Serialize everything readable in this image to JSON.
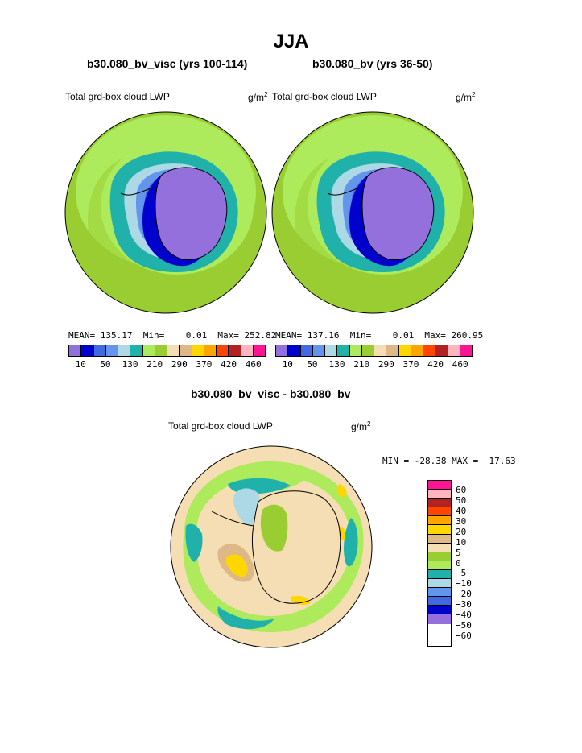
{
  "title": "JJA",
  "colors": {
    "lwp_levels": [
      "#9370DB",
      "#0000CD",
      "#4169E1",
      "#6495ED",
      "#ADD8E6",
      "#20B2AA",
      "#ADEA5C",
      "#9ACD32",
      "#F5DEB3",
      "#DEB887",
      "#FFD700",
      "#FFA500",
      "#FF4500",
      "#B22222",
      "#FFB6C1",
      "#FF1493"
    ],
    "diff_levels": [
      "#FF1493",
      "#FFB6C1",
      "#B22222",
      "#FF4500",
      "#FFA500",
      "#FFD700",
      "#DEB887",
      "#F5DEB3",
      "#9ACD32",
      "#ADEA5C",
      "#20B2AA",
      "#ADD8E6",
      "#6495ED",
      "#4169E1",
      "#0000CD",
      "#9370DB"
    ],
    "land": "#9370DB",
    "coast": "#000000"
  },
  "panels": [
    {
      "title": "b30.080_bv_visc (yrs 100-114)",
      "var_label": "Total grd-box cloud LWP",
      "units_base": "g/m",
      "units_exp": "2",
      "stats": "MEAN= 135.17  Min=    0.01  Max= 252.82",
      "mean": 135.17,
      "min": 0.01,
      "max": 252.82
    },
    {
      "title": "b30.080_bv (yrs 36-50)",
      "var_label": "Total grd-box cloud LWP",
      "units_base": "g/m",
      "units_exp": "2",
      "stats": "MEAN= 137.16  Min=    0.01  Max= 260.95",
      "mean": 137.16,
      "min": 0.01,
      "max": 260.95
    }
  ],
  "colorbar_labels": [
    "10",
    "50",
    "130",
    "210",
    "290",
    "370",
    "420",
    "460"
  ],
  "diff": {
    "title": "b30.080_bv_visc - b30.080_bv",
    "var_label": "Total grd-box cloud LWP",
    "units_base": "g/m",
    "units_exp": "2",
    "stats": "MIN = -28.38 MAX =  17.63",
    "min": -28.38,
    "max": 17.63,
    "colorbar_labels": [
      "60",
      "50",
      "40",
      "30",
      "20",
      "10",
      "5",
      "0",
      "−5",
      "−10",
      "−20",
      "−30",
      "−40",
      "−50",
      "−60"
    ]
  }
}
